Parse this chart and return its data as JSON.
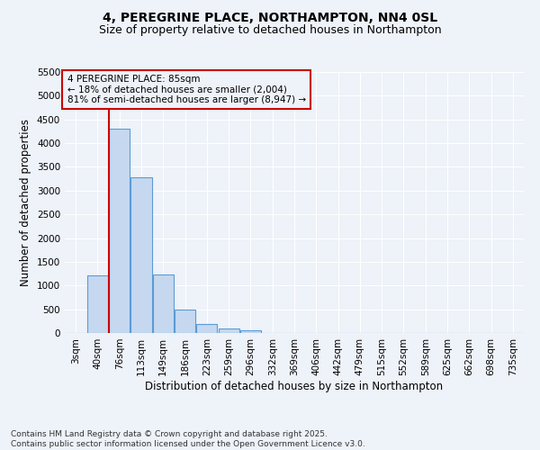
{
  "title1": "4, PEREGRINE PLACE, NORTHAMPTON, NN4 0SL",
  "title2": "Size of property relative to detached houses in Northampton",
  "xlabel": "Distribution of detached houses by size in Northampton",
  "ylabel": "Number of detached properties",
  "footnote1": "Contains HM Land Registry data © Crown copyright and database right 2025.",
  "footnote2": "Contains public sector information licensed under the Open Government Licence v3.0.",
  "annotation_line1": "4 PEREGRINE PLACE: 85sqm",
  "annotation_line2": "← 18% of detached houses are smaller (2,004)",
  "annotation_line3": "81% of semi-detached houses are larger (8,947) →",
  "bin_labels": [
    "3sqm",
    "40sqm",
    "76sqm",
    "113sqm",
    "149sqm",
    "186sqm",
    "223sqm",
    "259sqm",
    "296sqm",
    "332sqm",
    "369sqm",
    "406sqm",
    "442sqm",
    "479sqm",
    "515sqm",
    "552sqm",
    "589sqm",
    "625sqm",
    "662sqm",
    "698sqm",
    "735sqm"
  ],
  "bar_values": [
    0,
    1220,
    4300,
    3280,
    1240,
    500,
    190,
    100,
    60,
    0,
    0,
    0,
    0,
    0,
    0,
    0,
    0,
    0,
    0,
    0,
    0
  ],
  "bar_color": "#c5d8f0",
  "bar_edge_color": "#5b9bd5",
  "vline_color": "#cc0000",
  "annotation_box_color": "#cc0000",
  "ylim": [
    0,
    5500
  ],
  "yticks": [
    0,
    500,
    1000,
    1500,
    2000,
    2500,
    3000,
    3500,
    4000,
    4500,
    5000,
    5500
  ],
  "bg_color": "#eef2f9",
  "grid_color": "#ffffff",
  "title1_fontsize": 10,
  "title2_fontsize": 9,
  "annotation_fontsize": 7.5,
  "axis_label_fontsize": 8.5,
  "tick_fontsize": 7.5,
  "footnote_fontsize": 6.5
}
